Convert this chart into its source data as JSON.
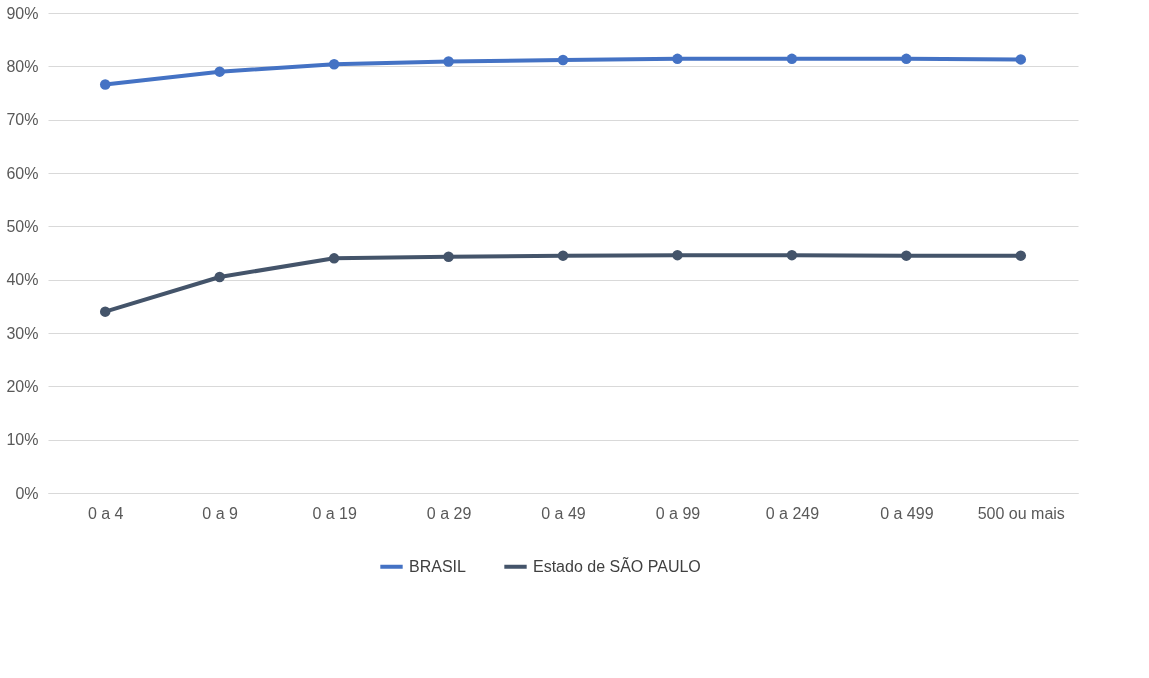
{
  "chart_data": {
    "type": "line",
    "categories": [
      "0 a 4",
      "0 a 9",
      "0 a 19",
      "0 a 29",
      "0 a 49",
      "0 a 99",
      "0 a 249",
      "0 a 499",
      "500 ou mais"
    ],
    "series": [
      {
        "name": "BRASIL",
        "color": "#4472c4",
        "values": [
          76.6,
          79.0,
          80.4,
          80.9,
          81.2,
          81.4,
          81.4,
          81.4,
          81.3
        ]
      },
      {
        "name": "Estado de SÃO PAULO",
        "color": "#44546a",
        "values": [
          34.0,
          40.5,
          44.0,
          44.3,
          44.5,
          44.6,
          44.6,
          44.5,
          44.5
        ]
      }
    ],
    "ylim": [
      0,
      90
    ],
    "yticks": [
      {
        "value": 0,
        "label": "0%"
      },
      {
        "value": 10,
        "label": "10%"
      },
      {
        "value": 20,
        "label": "20%"
      },
      {
        "value": 30,
        "label": "30%"
      },
      {
        "value": 40,
        "label": "40%"
      },
      {
        "value": 50,
        "label": "50%"
      },
      {
        "value": 60,
        "label": "60%"
      },
      {
        "value": 70,
        "label": "70%"
      },
      {
        "value": 80,
        "label": "80%"
      },
      {
        "value": 90,
        "label": "90%"
      }
    ],
    "grid": "y",
    "legend": "bottom",
    "marker": "circle",
    "line_style": "solid"
  }
}
